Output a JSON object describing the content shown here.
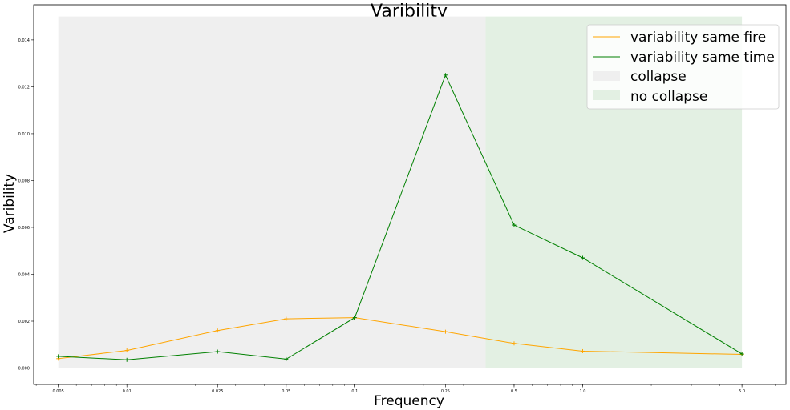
{
  "chart_data": {
    "type": "line",
    "title": "Varibility",
    "xlabel": "Frequency",
    "ylabel": "Varibility",
    "x_scale": "log",
    "x": [
      0.005,
      0.01,
      0.025,
      0.05,
      0.1,
      0.25,
      0.5,
      1.0,
      5.0
    ],
    "x_tick_labels": [
      "0.005",
      "0.01",
      "0.025",
      "0.05",
      "0.1",
      "0.25",
      "0.5",
      "1.0",
      "5.0"
    ],
    "y_ticks": [
      0.0,
      0.002,
      0.004,
      0.006,
      0.008,
      0.01,
      0.012,
      0.014
    ],
    "y_tick_labels": [
      "0.000",
      "0.002",
      "0.004",
      "0.006",
      "0.008",
      "0.010",
      "0.012",
      "0.014"
    ],
    "ylim": [
      -0.0007,
      0.0155
    ],
    "xlim": [
      0.0039,
      7.8
    ],
    "series": [
      {
        "name": "variability same fire",
        "color": "#ffa500",
        "values": [
          0.0004,
          0.00075,
          0.0016,
          0.0021,
          0.00215,
          0.00155,
          0.00105,
          0.00072,
          0.00058
        ]
      },
      {
        "name": "variability same time",
        "color": "#008000",
        "values": [
          0.0005,
          0.00035,
          0.0007,
          0.00038,
          0.00215,
          0.0125,
          0.0061,
          0.0047,
          0.0006
        ]
      }
    ],
    "regions": [
      {
        "name": "collapse",
        "color": "#efefef",
        "x_start": 0.005,
        "x_end": 0.375,
        "y_top": 0.015
      },
      {
        "name": "no collapse",
        "color": "#e3f0e3",
        "x_start": 0.375,
        "x_end": 5.0,
        "y_top": 0.015
      }
    ],
    "legend_position": "top-right",
    "grid": false
  }
}
